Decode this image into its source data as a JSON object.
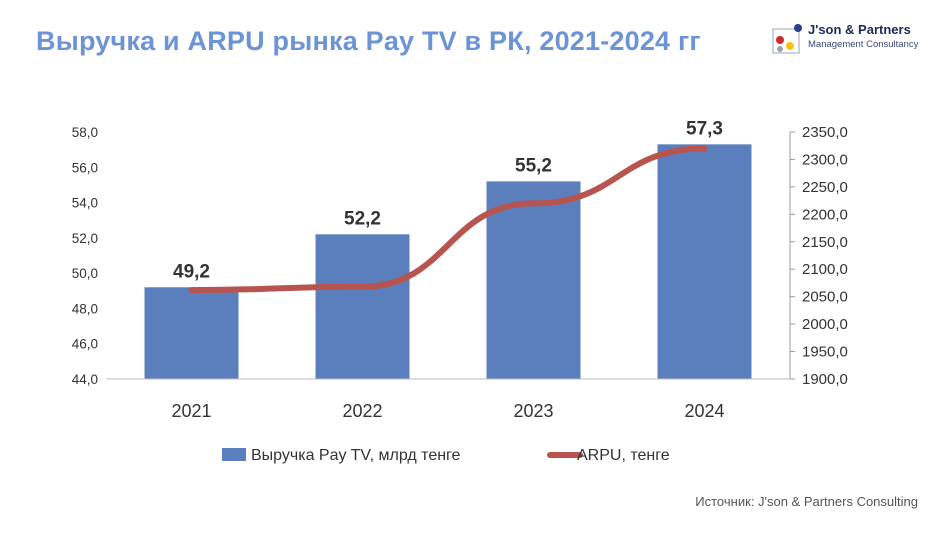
{
  "title": "Выручка и ARPU рынка Pay TV в РК, 2021-2024 гг",
  "logo": {
    "name": "J'son & Partners",
    "subtitle": "Management Consultancy"
  },
  "source": "Источник: J'son & Partners Consulting",
  "colors": {
    "title": "#6b93d6",
    "bar": "#5b7fbc",
    "line": "#b85450",
    "axis": "#333333"
  },
  "chart_data": {
    "type": "bar",
    "title": "Выручка и ARPU рынка Pay TV в РК, 2021-2024 гг",
    "categories": [
      "2021",
      "2022",
      "2023",
      "2024"
    ],
    "series": [
      {
        "name": "Выручка Pay TV, млрд тенге",
        "type": "bar",
        "axis": "left",
        "values": [
          49.2,
          52.2,
          55.2,
          57.3
        ],
        "labels": [
          "49,2",
          "52,2",
          "55,2",
          "57,3"
        ]
      },
      {
        "name": "ARPU, тенге",
        "type": "line",
        "axis": "right",
        "values": [
          2062,
          2068,
          2220,
          2320
        ]
      }
    ],
    "y_left": {
      "ylim": [
        44,
        58
      ],
      "ticks": [
        "44,0",
        "46,0",
        "48,0",
        "50,0",
        "52,0",
        "54,0",
        "56,0",
        "58,0"
      ]
    },
    "y_right": {
      "ylim": [
        1900,
        2350
      ],
      "ticks": [
        "1900,0",
        "1950,0",
        "2000,0",
        "2050,0",
        "2100,0",
        "2150,0",
        "2200,0",
        "2250,0",
        "2300,0",
        "2350,0"
      ]
    },
    "legend": [
      "Выручка Pay TV, млрд тенге",
      "ARPU, тенге"
    ],
    "legend_position": "bottom",
    "grid": false
  }
}
